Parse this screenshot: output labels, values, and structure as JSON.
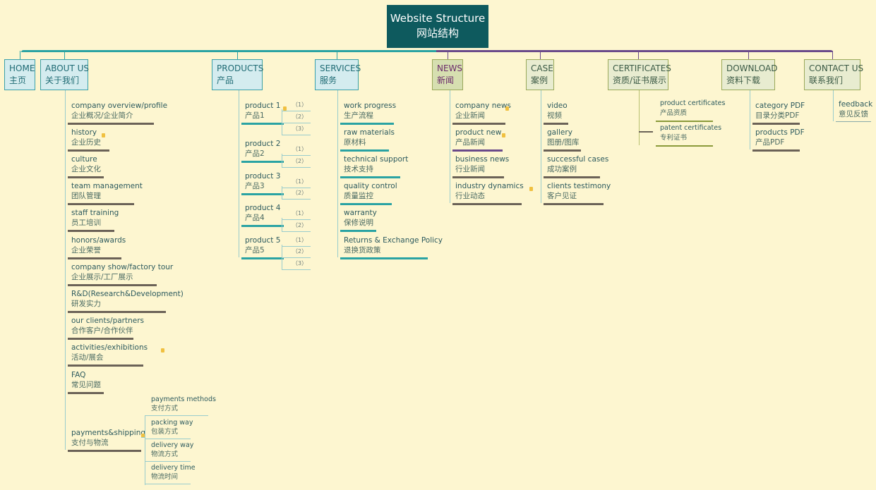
{
  "root": {
    "en": "Website Structure",
    "zh": "网站结构"
  },
  "colors": {
    "root": "#0e5a5e",
    "teal": "#2aa3a3",
    "purple": "#6a4a8a",
    "dark": "#6b6257",
    "olive": "#8a9a3a",
    "background": "#fdf6d0"
  },
  "branches": [
    {
      "en": "HOME",
      "zh": "主页",
      "children": []
    },
    {
      "en": "ABOUT US",
      "zh": "关于我们",
      "children": [
        {
          "en": "company overview/profile",
          "zh": "企业概况/企业简介"
        },
        {
          "en": "history",
          "zh": "企业历史",
          "note": true
        },
        {
          "en": "culture",
          "zh": "企业文化"
        },
        {
          "en": " team management",
          "zh": "团队管理"
        },
        {
          "en": "staff training",
          "zh": "员工培训"
        },
        {
          "en": "honors/awards",
          "zh": "企业荣誉"
        },
        {
          "en": "company show/factory tour",
          "zh": "企业展示/工厂展示"
        },
        {
          "en": "R&D(Research&Development)",
          "zh": "研发实力"
        },
        {
          "en": "our clients/partners",
          "zh": "合作客户/合作伙伴"
        },
        {
          "en": "activities/exhibitions",
          "zh": "活动/展会",
          "note": true
        },
        {
          "en": "FAQ",
          "zh": "常见问题"
        },
        {
          "en": "payments&shipping",
          "zh": "支付与物流",
          "note": true,
          "children": [
            {
              "en": "payments methods",
              "zh": "支付方式"
            },
            {
              "en": "packing way",
              "zh": "包装方式"
            },
            {
              "en": "delivery way",
              "zh": "物流方式"
            },
            {
              "en": "delivery time",
              "zh": "物流时间"
            }
          ]
        }
      ]
    },
    {
      "en": "PRODUCTS",
      "zh": "产品",
      "children": [
        {
          "en": "product 1",
          "zh": "产品1",
          "note": true,
          "children": [
            "（1）",
            "（2）",
            "（3）"
          ]
        },
        {
          "en": "product 2",
          "zh": "产品2",
          "children": [
            "（1）",
            "（2）"
          ]
        },
        {
          "en": "product 3",
          "zh": "产品3",
          "children": [
            "（1）",
            "（2）"
          ]
        },
        {
          "en": "product 4",
          "zh": "产品4",
          "children": [
            "（1）",
            "（2）"
          ]
        },
        {
          "en": "product 5",
          "zh": "产品5",
          "children": [
            "（1）",
            "（2）",
            "（3）"
          ]
        }
      ]
    },
    {
      "en": "SERVICES",
      "zh": "服务",
      "children": [
        {
          "en": "work progress",
          "zh": "生产流程"
        },
        {
          "en": "raw materials",
          "zh": "原材料"
        },
        {
          "en": "technical support",
          "zh": "技术支持"
        },
        {
          "en": "quality control",
          "zh": "质量监控"
        },
        {
          "en": "warranty",
          "zh": "保修说明"
        },
        {
          "en": "Returns & Exchange Policy",
          "zh": "退换货政策"
        }
      ]
    },
    {
      "en": "NEWS",
      "zh": "新闻",
      "children": [
        {
          "en": "company news",
          "zh": "企业新闻",
          "note": true
        },
        {
          "en": "product new",
          "zh": "产品新闻",
          "note": true
        },
        {
          "en": "business news",
          "zh": "行业新闻"
        },
        {
          "en": "industry  dynamics",
          "zh": "行业动态",
          "note": true
        }
      ]
    },
    {
      "en": "CASE",
      "zh": "案例",
      "children": [
        {
          "en": "video",
          "zh": "视频"
        },
        {
          "en": "gallery",
          "zh": "图册/图库"
        },
        {
          "en": "successful cases",
          "zh": "成功案例"
        },
        {
          "en": "clients testimony",
          "zh": "客户见证"
        }
      ]
    },
    {
      "en": "CERTIFICATES",
      "zh": "资质/证书展示",
      "children": [
        {
          "en": "product certificates",
          "zh": "产品资质"
        },
        {
          "en": "patent certificates",
          "zh": "专利证书"
        }
      ]
    },
    {
      "en": "DOWNLOAD",
      "zh": "资料下载",
      "children": [
        {
          "en": "category PDF",
          "zh": "目录分类PDF"
        },
        {
          "en": "products PDF",
          "zh": "产品PDF"
        }
      ]
    },
    {
      "en": "CONTACT US",
      "zh": "联系我们",
      "children": [
        {
          "en": "feedback",
          "zh": "意见反馈"
        }
      ]
    }
  ]
}
